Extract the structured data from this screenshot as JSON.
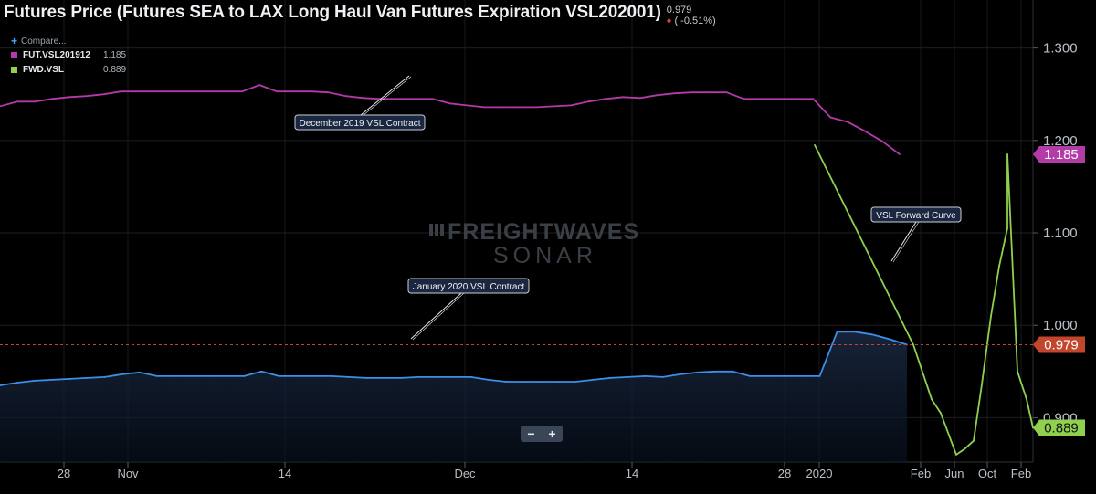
{
  "header": {
    "title": "Futures Price (Futures SEA to LAX Long Haul Van Futures Expiration VSL202001)",
    "last_price": "0.979",
    "change_symbol": "♦",
    "change_text": "( -0.51%)"
  },
  "legend": {
    "compare_label": "Compare...",
    "items": [
      {
        "name": "FUT.VSL201912",
        "value": "1.185",
        "color": "#b43aa8"
      },
      {
        "name": "FWD.VSL",
        "value": "0.889",
        "color": "#8fd14f"
      }
    ]
  },
  "watermark": {
    "line1": "FREIGHTWAVES",
    "line2": "SONAR"
  },
  "zoom": {
    "minus": "−",
    "plus": "+"
  },
  "colors": {
    "magenta": "#b43aa8",
    "blue": "#3b8fe8",
    "green": "#8fd14f",
    "refline": "#c2462c"
  },
  "chart_data": {
    "type": "line",
    "title": "Futures Price (Futures SEA to LAX Long Haul Van Futures Expiration VSL202001)",
    "ylim": [
      0.852,
      1.352
    ],
    "y_ticks": [
      0.9,
      1.0,
      1.1,
      1.2,
      1.3
    ],
    "y_tick_labels": [
      "0.900",
      "1.000",
      "1.100",
      "1.200",
      "1.300"
    ],
    "x_tick_labels": [
      "28",
      "Nov",
      "14",
      "Dec",
      "14",
      "28",
      "2020",
      "Feb",
      "Jun",
      "Oct",
      "Feb"
    ],
    "grid": true,
    "reference_line": {
      "value": 0.979,
      "label": "0.979"
    },
    "series": [
      {
        "name": "FUT.VSL201912",
        "color": "#b43aa8",
        "last_label": "1.185",
        "x": [
          "Oct 24",
          "Oct 25",
          "Oct 28",
          "Oct 29",
          "Oct 30",
          "Oct 31",
          "Nov 1",
          "Nov 4",
          "Nov 5",
          "Nov 6",
          "Nov 7",
          "Nov 8",
          "Nov 11",
          "Nov 12",
          "Nov 13",
          "Nov 14",
          "Nov 15",
          "Nov 18",
          "Nov 19",
          "Nov 20",
          "Nov 21",
          "Nov 22",
          "Nov 25",
          "Nov 26",
          "Nov 27",
          "Nov 29",
          "Dec 2",
          "Dec 3",
          "Dec 4",
          "Dec 5",
          "Dec 6",
          "Dec 9",
          "Dec 10",
          "Dec 11",
          "Dec 12",
          "Dec 13",
          "Dec 16",
          "Dec 17",
          "Dec 18",
          "Dec 19",
          "Dec 20",
          "Dec 23",
          "Dec 24",
          "Dec 26",
          "Dec 27",
          "Dec 30",
          "Dec 31",
          "Jan 2",
          "Jan 3",
          "Jan 6",
          "Jan 7",
          "Jan 8",
          "Jan 9"
        ],
        "values": [
          1.237,
          1.242,
          1.242,
          1.245,
          1.247,
          1.248,
          1.25,
          1.253,
          1.253,
          1.253,
          1.253,
          1.253,
          1.253,
          1.253,
          1.253,
          1.26,
          1.253,
          1.253,
          1.253,
          1.252,
          1.248,
          1.246,
          1.245,
          1.245,
          1.245,
          1.245,
          1.24,
          1.238,
          1.236,
          1.236,
          1.236,
          1.236,
          1.237,
          1.238,
          1.242,
          1.245,
          1.247,
          1.246,
          1.249,
          1.251,
          1.252,
          1.252,
          1.252,
          1.245,
          1.245,
          1.245,
          1.245,
          1.245,
          1.225,
          1.22,
          1.21,
          1.199,
          1.185
        ]
      },
      {
        "name": "FUT.VSL202001",
        "color": "#3b8fe8",
        "last_label": "0.979",
        "x": [
          "Oct 24",
          "Oct 25",
          "Oct 28",
          "Oct 29",
          "Oct 30",
          "Oct 31",
          "Nov 1",
          "Nov 4",
          "Nov 5",
          "Nov 6",
          "Nov 7",
          "Nov 8",
          "Nov 11",
          "Nov 12",
          "Nov 13",
          "Nov 14",
          "Nov 15",
          "Nov 18",
          "Nov 19",
          "Nov 20",
          "Nov 21",
          "Nov 22",
          "Nov 25",
          "Nov 26",
          "Nov 27",
          "Nov 29",
          "Dec 2",
          "Dec 3",
          "Dec 4",
          "Dec 5",
          "Dec 6",
          "Dec 9",
          "Dec 10",
          "Dec 11",
          "Dec 12",
          "Dec 13",
          "Dec 16",
          "Dec 17",
          "Dec 18",
          "Dec 19",
          "Dec 20",
          "Dec 23",
          "Dec 24",
          "Dec 26",
          "Dec 27",
          "Dec 30",
          "Dec 31",
          "Jan 2",
          "Jan 3",
          "Jan 6",
          "Jan 7",
          "Jan 8",
          "Jan 9"
        ],
        "values": [
          0.935,
          0.938,
          0.94,
          0.941,
          0.942,
          0.943,
          0.944,
          0.947,
          0.949,
          0.945,
          0.945,
          0.945,
          0.945,
          0.945,
          0.945,
          0.95,
          0.945,
          0.945,
          0.945,
          0.945,
          0.944,
          0.943,
          0.943,
          0.943,
          0.944,
          0.944,
          0.944,
          0.944,
          0.941,
          0.939,
          0.939,
          0.939,
          0.939,
          0.939,
          0.941,
          0.943,
          0.944,
          0.945,
          0.944,
          0.947,
          0.949,
          0.95,
          0.95,
          0.945,
          0.945,
          0.945,
          0.945,
          0.945,
          0.993,
          0.993,
          0.99,
          0.985,
          0.979
        ]
      },
      {
        "name": "FWD.VSL",
        "color": "#8fd14f",
        "last_label": "0.889",
        "x": [
          "Dec 2019",
          "Jan 2020",
          "Feb 2020",
          "Mar 2020",
          "Apr 2020",
          "May 2020",
          "Jun 2020",
          "Jul 2020",
          "Aug 2020",
          "Sep 2020",
          "Oct 2020",
          "Nov 2020",
          "Dec 2020",
          "Jan 2021",
          "Feb 2021"
        ],
        "values": [
          1.195,
          0.979,
          0.92,
          0.905,
          0.86,
          0.866,
          0.875,
          0.936,
          1.01,
          1.064,
          1.105,
          1.185,
          0.95,
          0.92,
          0.889
        ]
      }
    ],
    "annotations": [
      "December 2019 VSL Contract",
      "January 2020 VSL Contract",
      "VSL Forward Curve"
    ]
  }
}
